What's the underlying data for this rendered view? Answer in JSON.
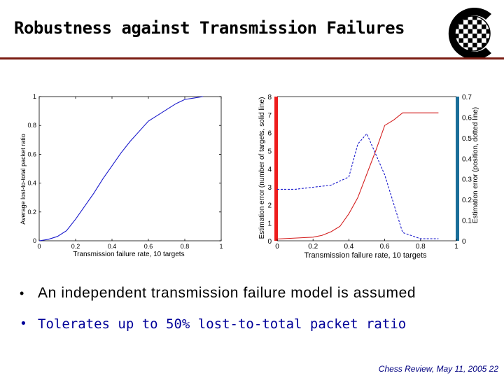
{
  "slide": {
    "title": "Robustness against Transmission Failures",
    "logo_letter": "C",
    "bullets": [
      "An independent transmission failure model is assumed",
      "Tolerates up to 50% lost-to-total packet ratio"
    ],
    "footer": "Chess Review, May 11, 2005  22"
  },
  "colors": {
    "title_rule": "#7a1c12",
    "bullet2": "#000099",
    "line_blue": "#1a1acc",
    "line_red": "#d42020",
    "bar_red": "#ee1c1c",
    "bar_blue": "#1a6e99"
  },
  "chart_data": [
    {
      "type": "line",
      "xlabel": "Transmission failure rate, 10 targets",
      "ylabel": "Average lost-to-total packet ratio",
      "xlim": [
        0,
        1
      ],
      "ylim": [
        0,
        1
      ],
      "xticks": [
        "0",
        "0.2",
        "0.4",
        "0.6",
        "0.8",
        "1"
      ],
      "yticks": [
        "0",
        "0.2",
        "0.4",
        "0.6",
        "0.8",
        "1"
      ],
      "series": [
        {
          "style": "solid",
          "color": "blue",
          "x": [
            0,
            0.05,
            0.1,
            0.15,
            0.2,
            0.25,
            0.3,
            0.35,
            0.4,
            0.45,
            0.5,
            0.55,
            0.6,
            0.65,
            0.7,
            0.75,
            0.8,
            0.85,
            0.9
          ],
          "y": [
            0,
            0.01,
            0.03,
            0.07,
            0.15,
            0.24,
            0.33,
            0.43,
            0.52,
            0.61,
            0.69,
            0.76,
            0.83,
            0.87,
            0.91,
            0.95,
            0.98,
            0.99,
            1.0
          ]
        }
      ]
    },
    {
      "type": "line",
      "xlabel": "Transmission failure rate, 10 targets",
      "ylabel": "Estimation error (number of targets, solid line)",
      "ylabel_right": "Estimation error (position, dotted line)",
      "xlim": [
        0,
        1
      ],
      "ylim": [
        0,
        8
      ],
      "ylim_right": [
        0,
        0.7
      ],
      "xticks": [
        "0",
        "0.2",
        "0.4",
        "0.6",
        "0.8",
        "1"
      ],
      "yticks": [
        "0",
        "1",
        "2",
        "3",
        "4",
        "5",
        "6",
        "7",
        "8"
      ],
      "yticks_right": [
        "0",
        "0.1",
        "0.2",
        "0.3",
        "0.4",
        "0.5",
        "0.6",
        "0.7"
      ],
      "series": [
        {
          "style": "solid",
          "color": "red",
          "axis": "left",
          "x": [
            0,
            0.1,
            0.2,
            0.25,
            0.3,
            0.35,
            0.4,
            0.45,
            0.5,
            0.55,
            0.6,
            0.65,
            0.7,
            0.8,
            0.9
          ],
          "y": [
            0.1,
            0.15,
            0.2,
            0.3,
            0.5,
            0.8,
            1.5,
            2.4,
            3.7,
            5.0,
            6.4,
            6.7,
            7.1,
            7.1,
            7.1
          ]
        },
        {
          "style": "dotted",
          "color": "blue",
          "axis": "right",
          "x": [
            0,
            0.05,
            0.1,
            0.2,
            0.3,
            0.35,
            0.4,
            0.45,
            0.5,
            0.55,
            0.6,
            0.65,
            0.7,
            0.8,
            0.9
          ],
          "y": [
            0.25,
            0.25,
            0.25,
            0.26,
            0.27,
            0.29,
            0.31,
            0.47,
            0.52,
            0.42,
            0.32,
            0.18,
            0.04,
            0.01,
            0.01
          ]
        }
      ]
    }
  ]
}
